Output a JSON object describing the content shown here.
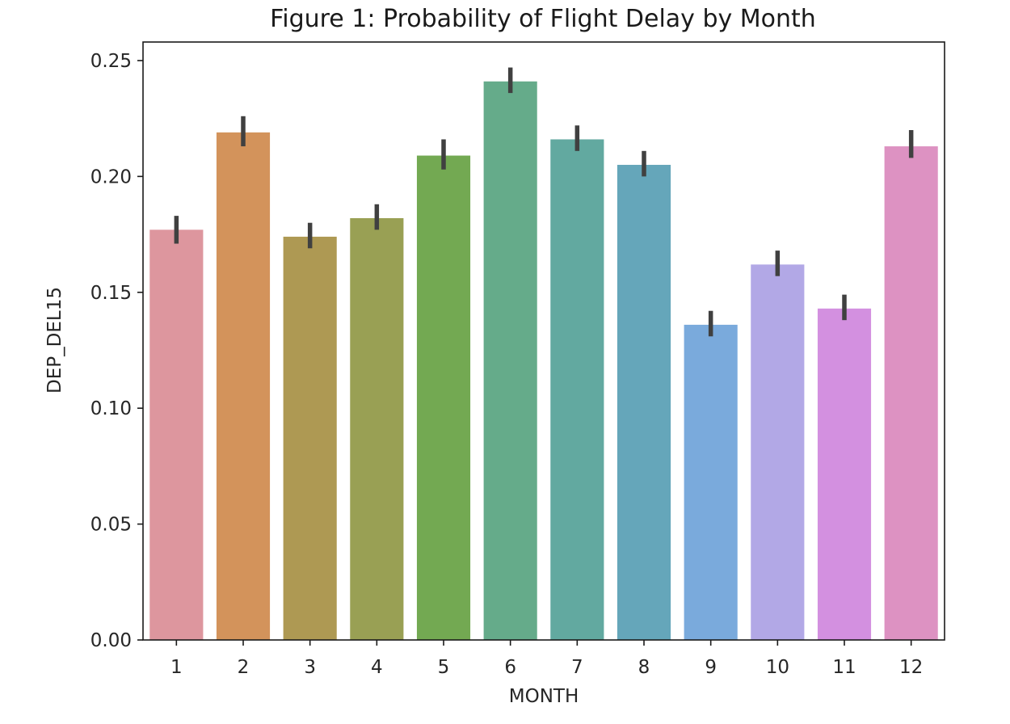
{
  "chart_data": {
    "type": "bar",
    "title": "Figure 1: Probability of Flight Delay by Month",
    "xlabel": "MONTH",
    "ylabel": "DEP_DEL15",
    "categories": [
      "1",
      "2",
      "3",
      "4",
      "5",
      "6",
      "7",
      "8",
      "9",
      "10",
      "11",
      "12"
    ],
    "values": [
      0.177,
      0.219,
      0.174,
      0.182,
      0.209,
      0.241,
      0.216,
      0.205,
      0.136,
      0.162,
      0.143,
      0.213
    ],
    "error_low": [
      0.171,
      0.213,
      0.169,
      0.177,
      0.203,
      0.236,
      0.211,
      0.2,
      0.131,
      0.157,
      0.138,
      0.208
    ],
    "error_high": [
      0.183,
      0.226,
      0.18,
      0.188,
      0.216,
      0.247,
      0.222,
      0.211,
      0.142,
      0.168,
      0.149,
      0.22
    ],
    "colors": [
      "#dd969e",
      "#d3935b",
      "#ae9953",
      "#99a054",
      "#73a952",
      "#65ab8a",
      "#62a9a0",
      "#65a6ba",
      "#7aaadc",
      "#b2a8e6",
      "#d390e0",
      "#dd92c2"
    ],
    "error_bar_color": "#404040",
    "yticks": [
      "0.00",
      "0.05",
      "0.10",
      "0.15",
      "0.20",
      "0.25"
    ],
    "ylim": [
      0,
      0.258
    ],
    "grid": false,
    "legend": "none"
  }
}
